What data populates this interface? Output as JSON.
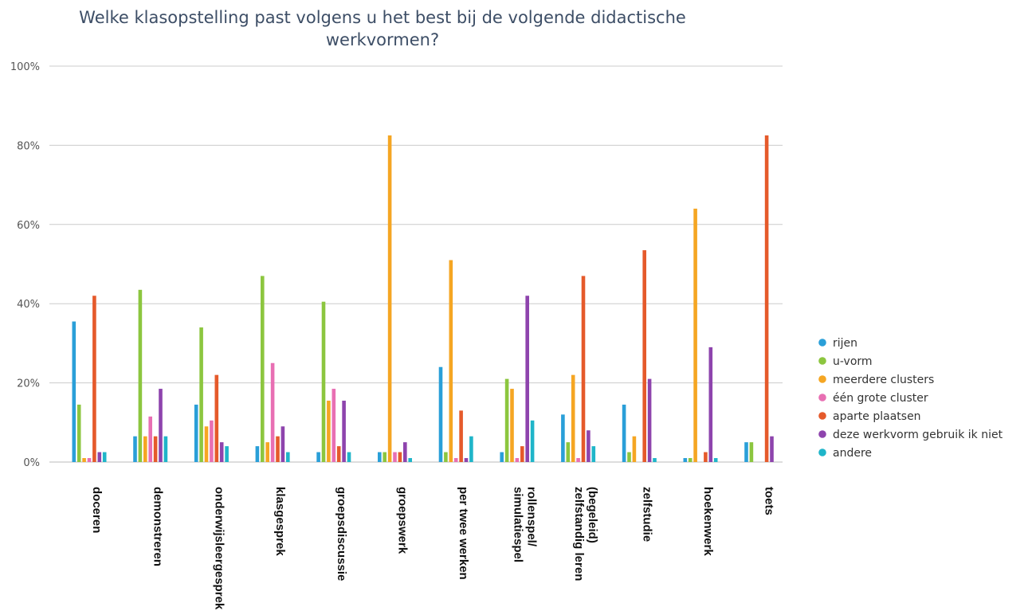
{
  "chart_data": {
    "type": "bar",
    "title_lines": [
      "Welke klasopstelling past volgens u het best bij de volgende didactische",
      "werkvormen?"
    ],
    "ylim": [
      0,
      100
    ],
    "yticks": [
      0,
      20,
      40,
      60,
      80,
      100
    ],
    "ytick_labels": [
      "0%",
      "20%",
      "40%",
      "60%",
      "80%",
      "100%"
    ],
    "grid": true,
    "legend_position": "right",
    "categories": [
      [
        "doceren"
      ],
      [
        "demonstreren"
      ],
      [
        "onderwijsleergesprek"
      ],
      [
        "klasgesprek"
      ],
      [
        "groepsdiscussie"
      ],
      [
        "groepswerk"
      ],
      [
        "per twee werken"
      ],
      [
        "rollenspel/",
        "simulatiespel"
      ],
      [
        "(begeleid)",
        "zelfstandig leren"
      ],
      [
        "zelfstudie"
      ],
      [
        "hoekenwerk"
      ],
      [
        "toets"
      ]
    ],
    "series": [
      {
        "name": "rijen",
        "color": "#2a9fd8",
        "values": [
          35.5,
          6.5,
          14.5,
          4,
          2.5,
          2.5,
          24,
          2.5,
          12,
          14.5,
          1,
          5
        ]
      },
      {
        "name": "u-vorm",
        "color": "#8cc63f",
        "values": [
          14.5,
          43.5,
          34,
          47,
          40.5,
          2.5,
          2.5,
          21,
          5,
          2.5,
          1,
          5
        ]
      },
      {
        "name": "meerdere clusters",
        "color": "#f5a623",
        "values": [
          1,
          6.5,
          9,
          5,
          15.5,
          82.5,
          51,
          18.5,
          22,
          6.5,
          64,
          0
        ]
      },
      {
        "name": "één grote cluster",
        "color": "#e86fb3",
        "values": [
          1,
          11.5,
          10.5,
          25,
          18.5,
          2.5,
          1,
          1,
          1,
          0,
          0,
          0
        ]
      },
      {
        "name": "aparte plaatsen",
        "color": "#e55a2b",
        "values": [
          42,
          6.5,
          22,
          6.5,
          4,
          2.5,
          13,
          4,
          47,
          53.5,
          2.5,
          82.5
        ]
      },
      {
        "name": "deze werkvorm gebruik ik niet",
        "color": "#8e44ad",
        "values": [
          2.5,
          18.5,
          5,
          9,
          15.5,
          5,
          1,
          42,
          8,
          21,
          29,
          6.5
        ]
      },
      {
        "name": "andere",
        "color": "#1fb5c9",
        "values": [
          2.5,
          6.5,
          4,
          2.5,
          2.5,
          1,
          6.5,
          10.5,
          4,
          1,
          1,
          0
        ]
      }
    ]
  }
}
